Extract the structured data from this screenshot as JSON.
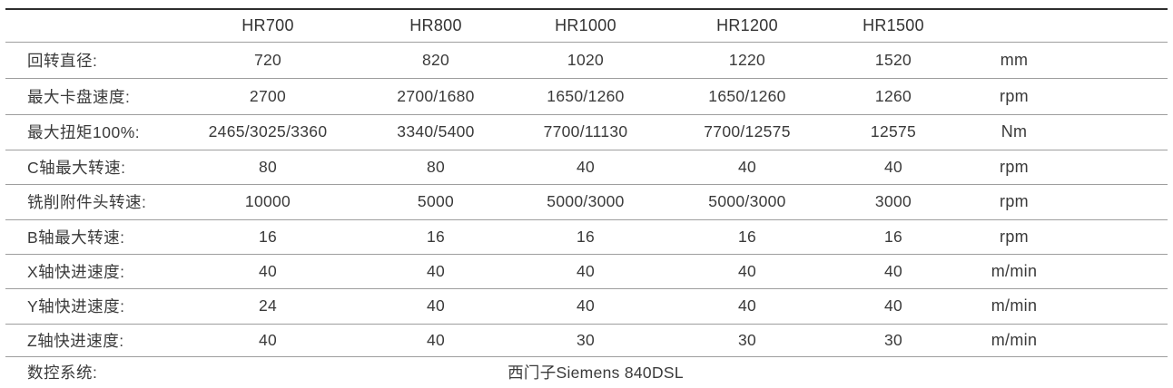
{
  "table": {
    "models": [
      "HR700",
      "HR800",
      "HR1000",
      "HR1200",
      "HR1500"
    ],
    "rows": [
      {
        "label": "回转直径:",
        "values": [
          "720",
          "820",
          "1020",
          "1220",
          "1520"
        ],
        "unit": "mm"
      },
      {
        "label": "最大卡盘速度:",
        "values": [
          "2700",
          "2700/1680",
          "1650/1260",
          "1650/1260",
          "1260"
        ],
        "unit": "rpm"
      },
      {
        "label": "最大扭矩100%:",
        "values": [
          "2465/3025/3360",
          "3340/5400",
          "7700/11130",
          "7700/12575",
          "12575"
        ],
        "unit": "Nm"
      },
      {
        "label": "C轴最大转速:",
        "values": [
          "80",
          "80",
          "40",
          "40",
          "40"
        ],
        "unit": "rpm"
      },
      {
        "label": "铣削附件头转速:",
        "values": [
          "10000",
          "5000",
          "5000/3000",
          "5000/3000",
          "3000"
        ],
        "unit": "rpm"
      },
      {
        "label": "B轴最大转速:",
        "values": [
          "16",
          "16",
          "16",
          "16",
          "16"
        ],
        "unit": "rpm"
      },
      {
        "label": "X轴快进速度:",
        "values": [
          "40",
          "40",
          "40",
          "40",
          "40"
        ],
        "unit": "m/min"
      },
      {
        "label": "Y轴快进速度:",
        "values": [
          "24",
          "40",
          "40",
          "40",
          "40"
        ],
        "unit": "m/min"
      },
      {
        "label": "Z轴快进速度:",
        "values": [
          "40",
          "40",
          "30",
          "30",
          "30"
        ],
        "unit": "m/min"
      }
    ],
    "footer": {
      "label": "数控系统:",
      "value": "西门子Siemens 840DSL"
    },
    "colors": {
      "top_rule": "#2e2e2e",
      "inner_rule": "#9e9e9e",
      "text": "#3a3a3a"
    }
  }
}
